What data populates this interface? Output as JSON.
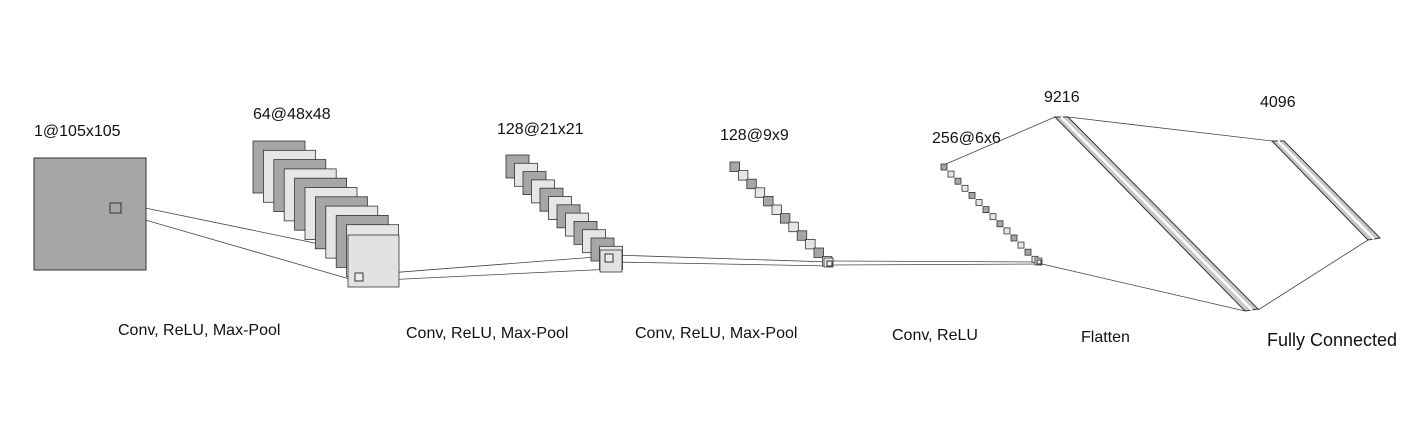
{
  "layers": [
    {
      "shape_label": "1@105x105"
    },
    {
      "shape_label": "64@48x48"
    },
    {
      "shape_label": "128@21x21"
    },
    {
      "shape_label": "128@9x9"
    },
    {
      "shape_label": "256@6x6"
    },
    {
      "shape_label": "9216"
    },
    {
      "shape_label": "4096"
    }
  ],
  "operations": [
    "Conv, ReLU, Max-Pool",
    "Conv, ReLU, Max-Pool",
    "Conv, ReLU, Max-Pool",
    "Conv, ReLU",
    "Flatten",
    "Fully Connected"
  ],
  "colors": {
    "dark": "#a6a6a6",
    "light": "#e6e6e6",
    "mid": "#c8c8c8",
    "stroke": "#333333"
  }
}
